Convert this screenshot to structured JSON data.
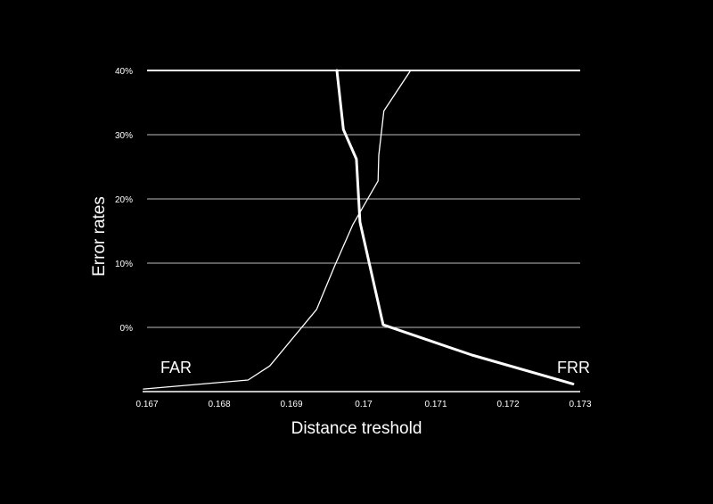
{
  "chart_data": {
    "type": "line",
    "title": "",
    "xlabel": "Distance treshold",
    "ylabel": "Error rates",
    "x_ticks": [
      "0.167",
      "0.168",
      "0.169",
      "0.17",
      "0.171",
      "0.172",
      "0.173"
    ],
    "y_ticks": [
      "0%",
      "10%",
      "20%",
      "30%",
      "40%"
    ],
    "xlim": [
      0.167,
      0.173
    ],
    "ylim": [
      -10,
      40
    ],
    "grid": true,
    "colors": {
      "background": "#000000",
      "foreground": "#ffffff",
      "grid": "#bbbbbb"
    },
    "series": [
      {
        "name": "FAR",
        "style": "thin",
        "x": [
          0.16695,
          0.1684,
          0.1687,
          0.16935,
          0.1696,
          0.16985,
          0.1702,
          0.17021,
          0.17028,
          0.17065
        ],
        "y": [
          -9.6,
          -8.2,
          -6.0,
          2.8,
          9.6,
          16.0,
          22.8,
          26.8,
          33.7,
          40.0
        ]
      },
      {
        "name": "FRR",
        "style": "thick",
        "x": [
          0.16963,
          0.16972,
          0.1699,
          0.16995,
          0.17027,
          0.1715,
          0.1729
        ],
        "y": [
          40.0,
          30.8,
          26.2,
          16.4,
          0.4,
          -4.3,
          -8.8
        ]
      }
    ],
    "annotations": [
      {
        "text": "FAR",
        "series": "FAR"
      },
      {
        "text": "FRR",
        "series": "FRR"
      }
    ]
  }
}
